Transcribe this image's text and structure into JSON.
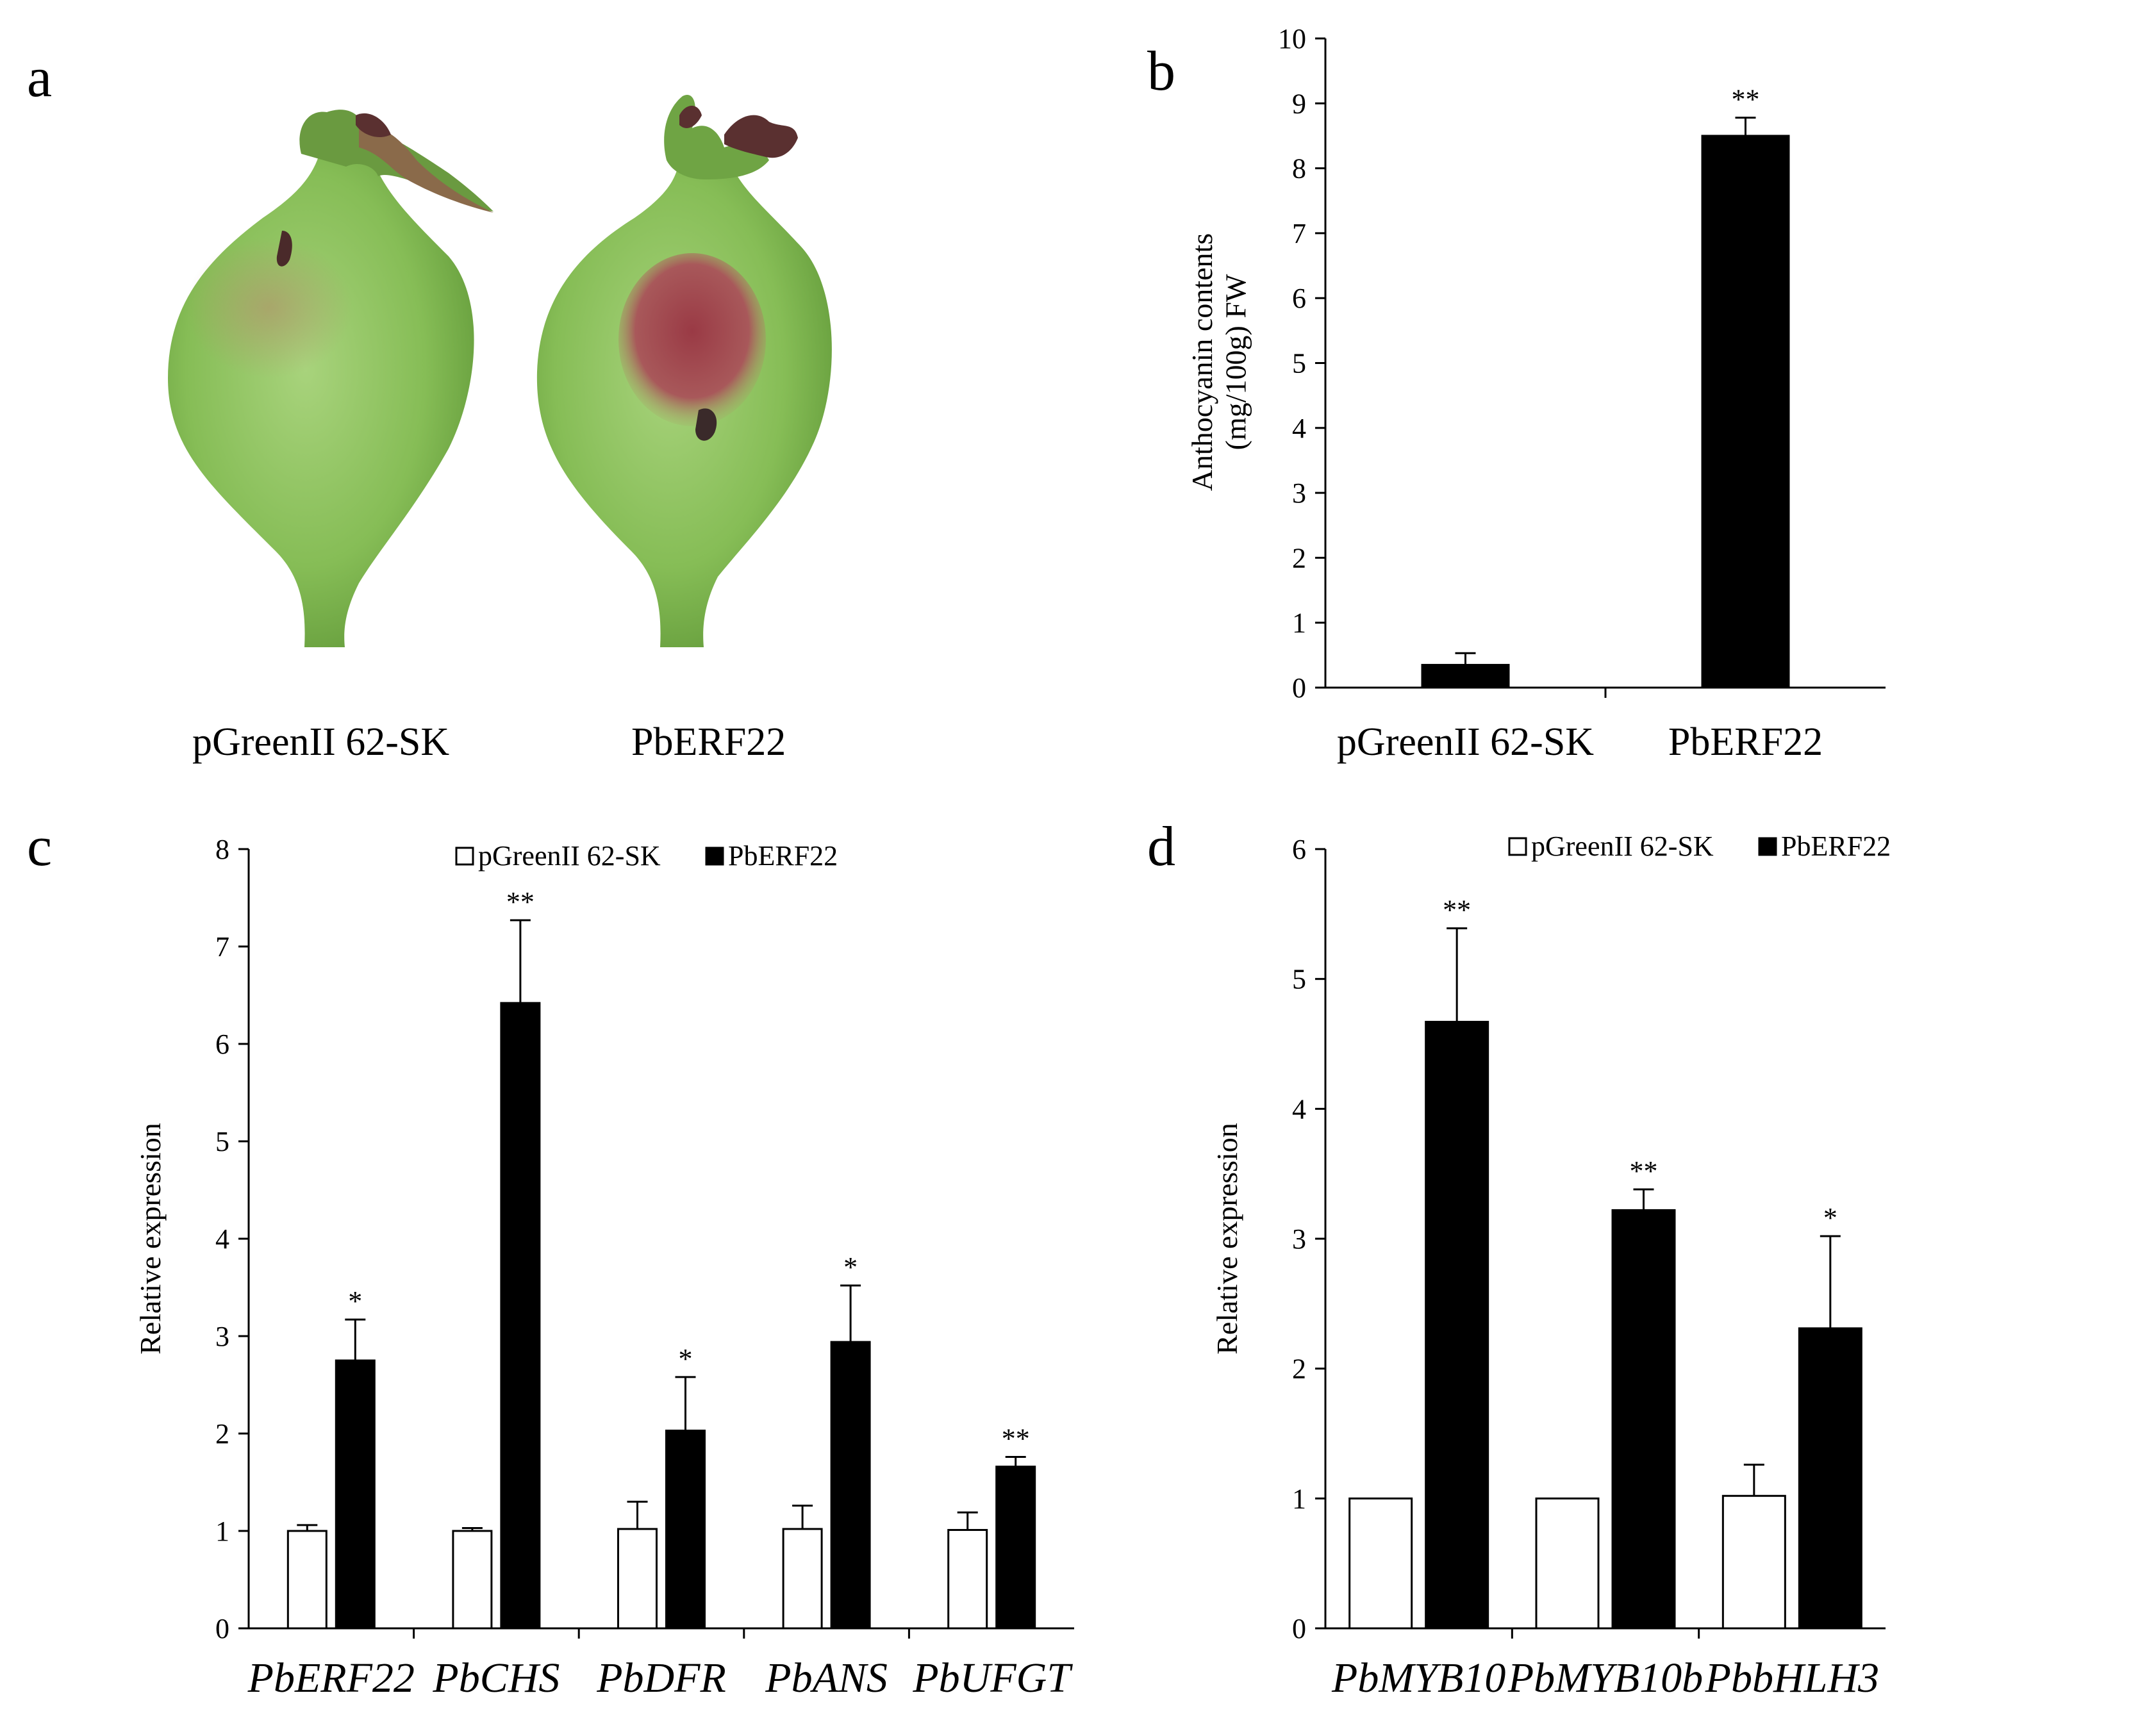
{
  "panels": {
    "a": {
      "letter": "a",
      "labels": [
        "pGreenII 62-SK",
        "PbERF22"
      ]
    }
  },
  "chart_data": [
    {
      "id": "b",
      "letter": "b",
      "type": "bar",
      "categories": [
        "pGreenII 62-SK",
        "PbERF22"
      ],
      "values": [
        0.35,
        8.5
      ],
      "errors": [
        0.18,
        0.28
      ],
      "significance": [
        "",
        "**"
      ],
      "colors": [
        "#000000",
        "#000000"
      ],
      "ylabel": [
        "Anthocyanin contents",
        "(mg/100g) FW"
      ],
      "ylim": [
        0,
        10
      ],
      "yticks": [
        0,
        1,
        2,
        3,
        4,
        5,
        6,
        7,
        8,
        9,
        10
      ],
      "legend": null
    },
    {
      "id": "c",
      "letter": "c",
      "type": "bar",
      "categories": [
        "PbERF22",
        "PbCHS",
        "PbDFR",
        "PbANS",
        "PbUFGT"
      ],
      "series": [
        {
          "name": "pGreenII 62-SK",
          "color": "#ffffff",
          "values": [
            1.0,
            1.0,
            1.02,
            1.02,
            1.01
          ],
          "errors": [
            0.06,
            0.03,
            0.28,
            0.24,
            0.18
          ],
          "significance": [
            "",
            "",
            "",
            "",
            ""
          ]
        },
        {
          "name": "PbERF22",
          "color": "#000000",
          "values": [
            2.75,
            6.42,
            2.03,
            2.94,
            1.66
          ],
          "errors": [
            0.42,
            0.85,
            0.55,
            0.58,
            0.1
          ],
          "significance": [
            "*",
            "**",
            "*",
            "*",
            "**"
          ]
        }
      ],
      "ylabel": [
        "Relative expression"
      ],
      "ylim": [
        0,
        8
      ],
      "yticks": [
        0,
        1,
        2,
        3,
        4,
        5,
        6,
        7,
        8
      ],
      "legend": "top-center"
    },
    {
      "id": "d",
      "letter": "d",
      "type": "bar",
      "categories": [
        "PbMYB10",
        "PbMYB10b",
        "PbbHLH3"
      ],
      "series": [
        {
          "name": "pGreenII 62-SK",
          "color": "#ffffff",
          "values": [
            1.0,
            1.0,
            1.02
          ],
          "errors": [
            0.0,
            0.0,
            0.24
          ],
          "significance": [
            "",
            "",
            ""
          ]
        },
        {
          "name": "PbERF22",
          "color": "#000000",
          "values": [
            4.67,
            3.22,
            2.31
          ],
          "errors": [
            0.72,
            0.16,
            0.71
          ],
          "significance": [
            "**",
            "**",
            "*"
          ]
        }
      ],
      "ylabel": [
        "Relative expression"
      ],
      "ylim": [
        0,
        6
      ],
      "yticks": [
        0,
        1,
        2,
        3,
        4,
        5,
        6
      ],
      "legend": "top-center"
    }
  ]
}
